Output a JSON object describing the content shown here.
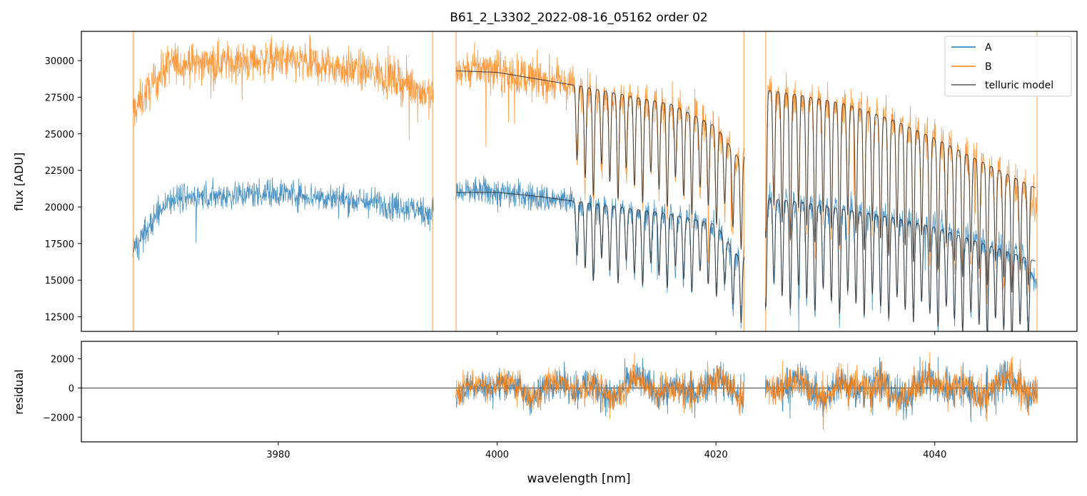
{
  "chart_data": [
    {
      "type": "line",
      "panel": "main",
      "title": "B61_2_L3302_2022-08-16_05162  order 02",
      "xlabel": "",
      "ylabel": "flux [ADU]",
      "xlim": [
        3962,
        4053
      ],
      "ylim": [
        11500,
        32000
      ],
      "yticks": [
        12500,
        15000,
        17500,
        20000,
        22500,
        25000,
        27500,
        30000
      ],
      "ytick_labels": [
        "12500",
        "15000",
        "17500",
        "20000",
        "22500",
        "25000",
        "27500",
        "30000"
      ],
      "legend_position": "top-right",
      "legend": [
        "A",
        "B",
        "telluric model"
      ],
      "colors": {
        "A": "#1f77b4",
        "B": "#ff7f0e",
        "telluric": "#333333"
      },
      "gaps_nm": [
        [
          3994.2,
          3996.2
        ],
        [
          4022.6,
          4024.5
        ]
      ],
      "x_range_nm": [
        3966.7,
        4049.4
      ],
      "series": [
        {
          "name": "A",
          "x": [
            3966.7,
            3970,
            3975,
            3980,
            3985,
            3990,
            3994,
            3996.3,
            3998,
            4000,
            4002,
            4004,
            4006,
            4008,
            4010,
            4012,
            4014,
            4016,
            4018,
            4020,
            4022,
            4024.6,
            4026,
            4028,
            4030,
            4032,
            4034,
            4036,
            4038,
            4040,
            4042,
            4044,
            4046,
            4048,
            4049.2
          ],
          "values": [
            17000,
            20600,
            20800,
            21000,
            20600,
            20200,
            19600,
            20900,
            21100,
            21000,
            20800,
            20600,
            20400,
            20200,
            20000,
            19800,
            19600,
            19400,
            19200,
            18800,
            16300,
            20500,
            20400,
            20200,
            20000,
            19800,
            19600,
            19300,
            19000,
            18700,
            18300,
            17900,
            17400,
            16900,
            15000
          ]
        },
        {
          "name": "B",
          "x": [
            3966.7,
            3970,
            3975,
            3980,
            3985,
            3990,
            3994,
            3996.3,
            3998,
            4000,
            4002,
            4004,
            4006,
            4008,
            4010,
            4012,
            4014,
            4016,
            4018,
            4020,
            4022,
            4024.6,
            4026,
            4028,
            4030,
            4032,
            4034,
            4036,
            4038,
            4040,
            4042,
            4044,
            4046,
            4048,
            4049.2
          ],
          "values": [
            26500,
            29800,
            29900,
            30000,
            29600,
            29000,
            27600,
            29300,
            29500,
            29300,
            29000,
            28700,
            28400,
            28100,
            27800,
            27500,
            27100,
            26700,
            26200,
            25500,
            23000,
            28000,
            27800,
            27500,
            27200,
            26900,
            26500,
            26000,
            25400,
            24700,
            24000,
            23200,
            22400,
            21500,
            20000
          ]
        },
        {
          "name": "telluric model",
          "x": [
            3996.3,
            4000,
            4004,
            4008,
            4012,
            4016,
            4020,
            4022.4,
            4024.6,
            4028,
            4032,
            4036,
            4040,
            4044,
            4049.2
          ],
          "values": [
            29300,
            29200,
            28700,
            28200,
            27600,
            27000,
            25500,
            23000,
            28000,
            27600,
            27000,
            26000,
            24700,
            23200,
            21300
          ],
          "values_A": [
            21000,
            21000,
            20700,
            20300,
            19900,
            19500,
            18800,
            16200,
            20600,
            20300,
            19800,
            19300,
            18600,
            17600,
            16300
          ]
        }
      ]
    },
    {
      "type": "line",
      "panel": "residual",
      "xlabel": "wavelength [nm]",
      "ylabel": "residual",
      "xlim": [
        3962,
        4053
      ],
      "ylim": [
        -3700,
        3200
      ],
      "yticks": [
        -2000,
        0,
        2000
      ],
      "ytick_labels": [
        "−2000",
        "0",
        "2000"
      ],
      "xticks": [
        3980,
        4000,
        4020,
        4040
      ],
      "xtick_labels": [
        "3980",
        "4000",
        "4020",
        "4040"
      ],
      "zero_line": 0,
      "series": [
        {
          "name": "A",
          "x_range": [
            3996.2,
            4049.4
          ],
          "values_rms": 900
        },
        {
          "name": "B",
          "x_range": [
            3996.2,
            4049.4
          ],
          "values_rms": 850
        }
      ]
    }
  ]
}
